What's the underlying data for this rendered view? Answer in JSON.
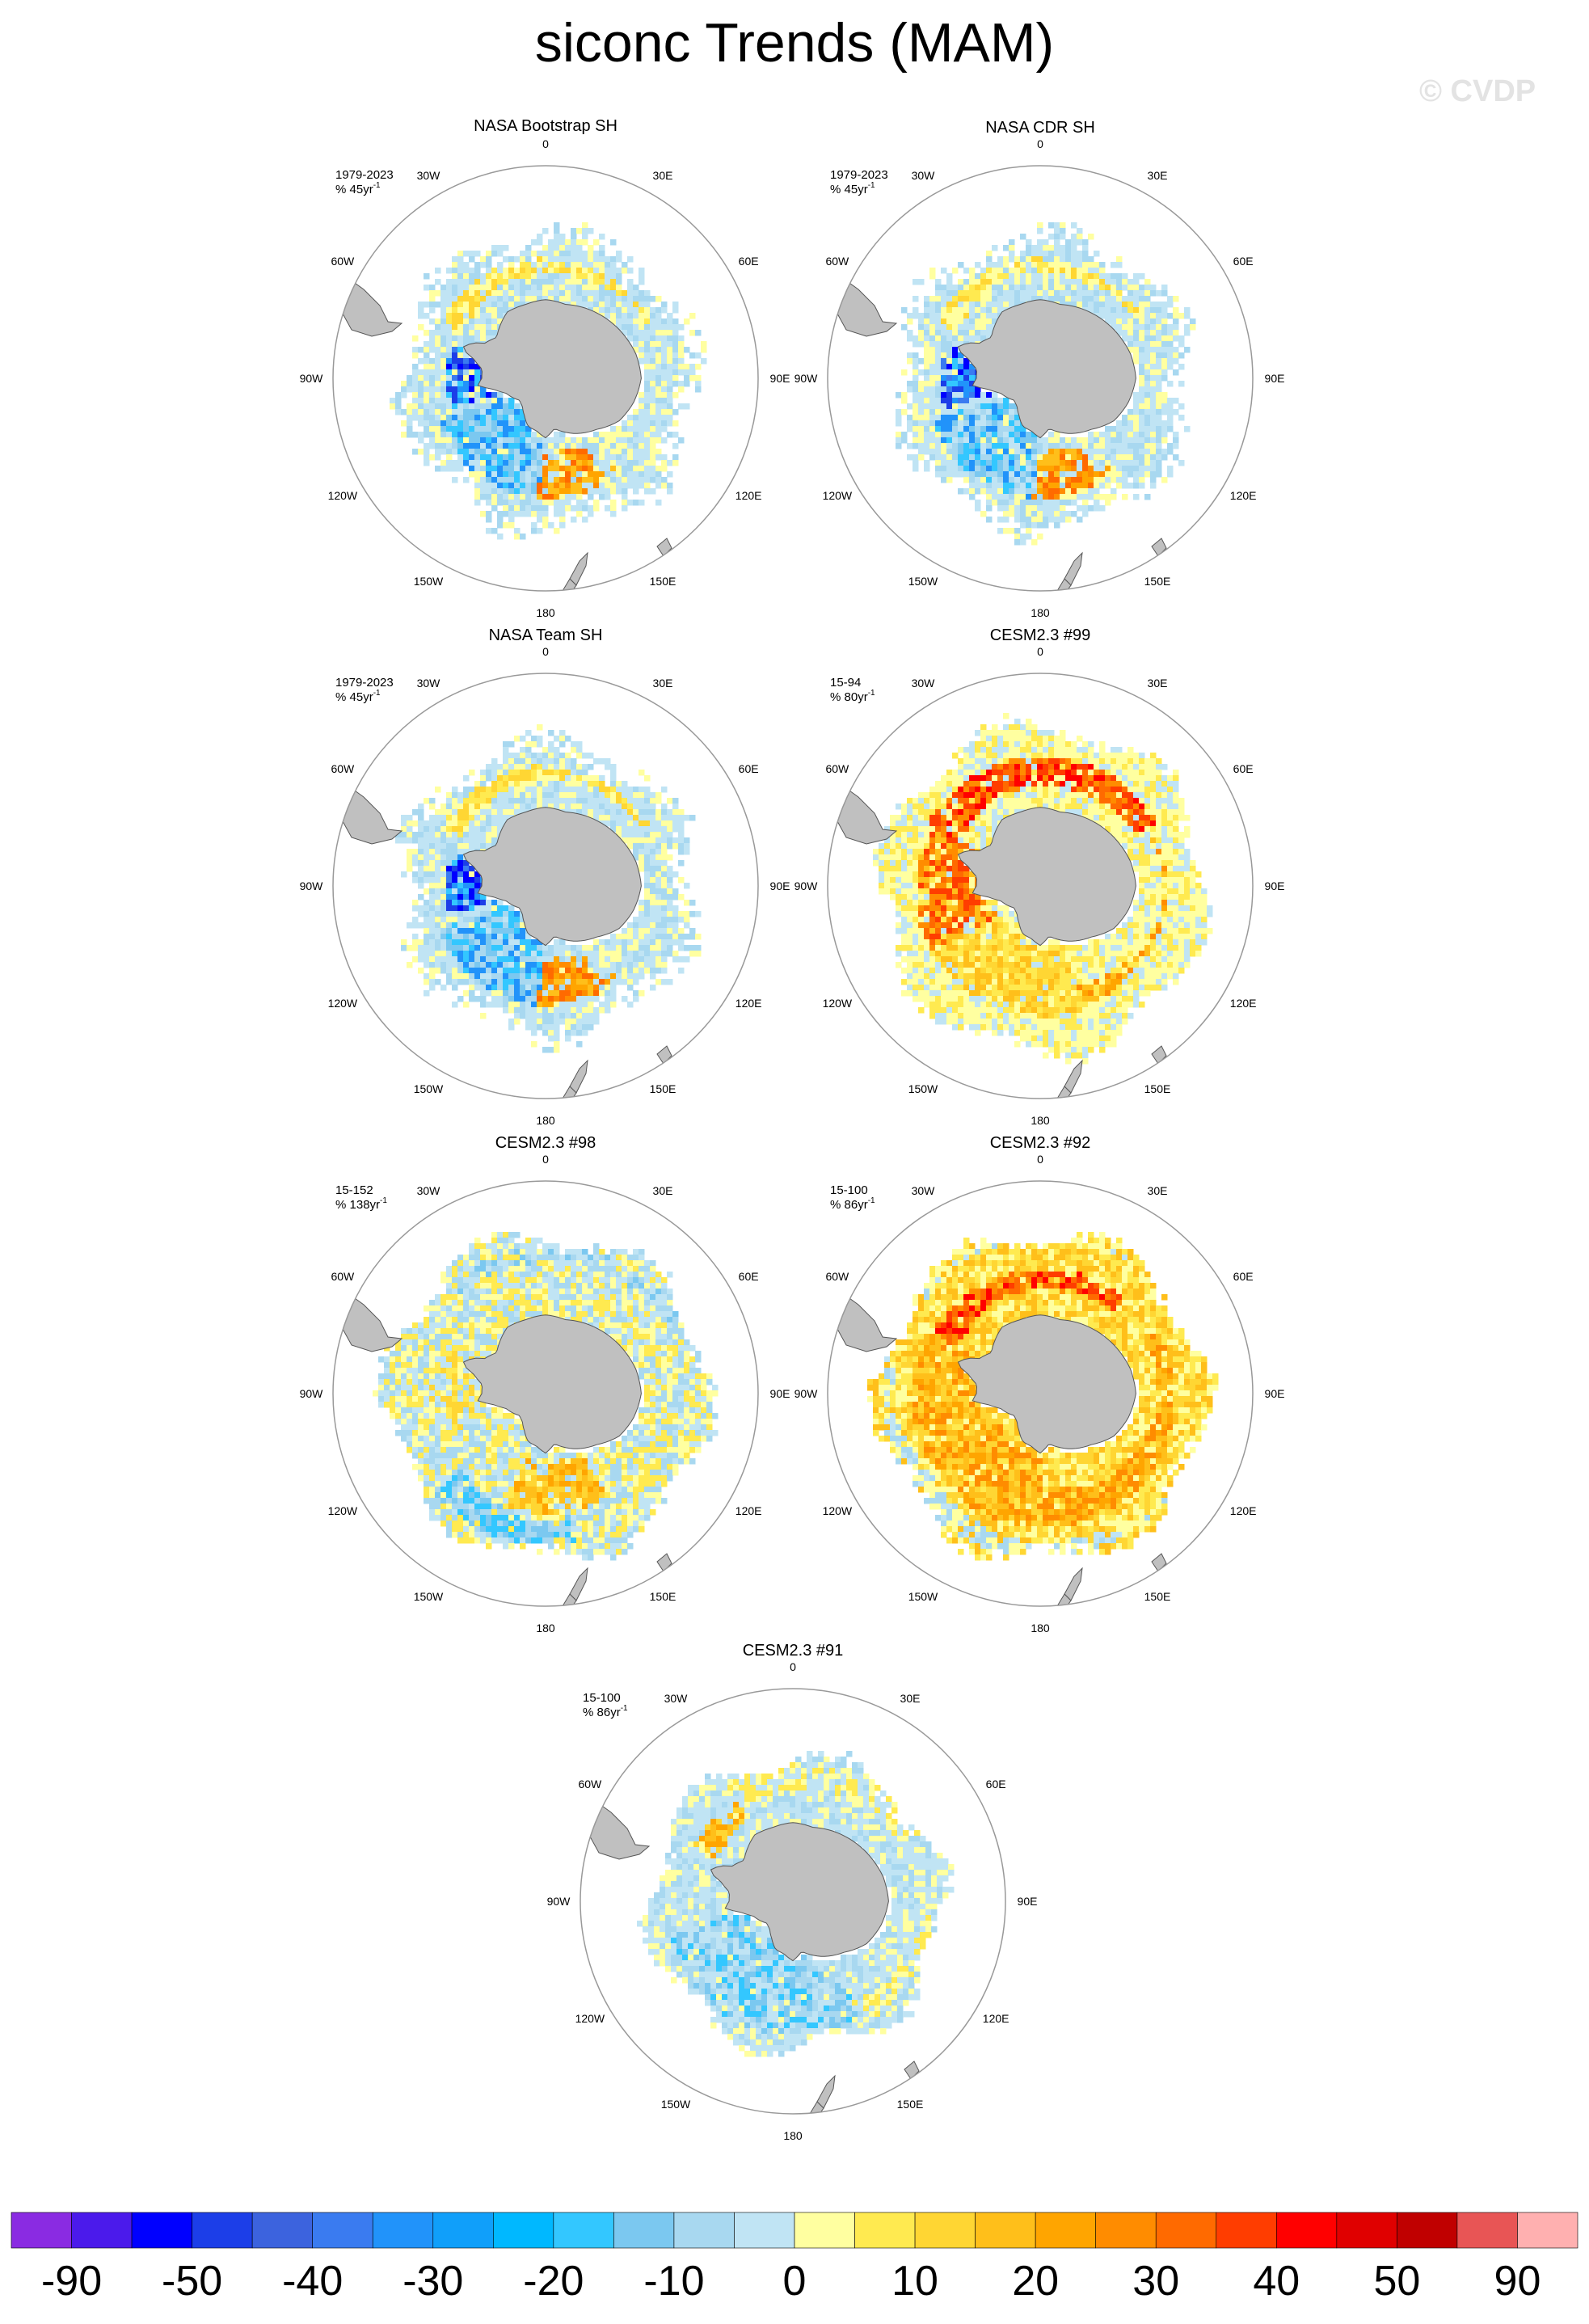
{
  "title": "siconc Trends (MAM)",
  "watermark": "© CVDP",
  "land_color": "#c0c0c0",
  "colors": {
    "map_border": "#999999",
    "coast": "#555555"
  },
  "lon_labels": [
    "0",
    "30E",
    "60E",
    "90E",
    "120E",
    "150E",
    "180",
    "150W",
    "120W",
    "90W",
    "60W",
    "30W"
  ],
  "panels": [
    {
      "title": "NASA Bootstrap SH",
      "period": "1979-2023",
      "units": "% 45yr",
      "units_sup": "-1",
      "pattern": "obs",
      "variant": 0
    },
    {
      "title": "NASA CDR SH",
      "period": "1979-2023",
      "units": "% 45yr",
      "units_sup": "-1",
      "pattern": "obs",
      "variant": 1
    },
    {
      "title": "NASA Team SH",
      "period": "1979-2023",
      "units": "% 45yr",
      "units_sup": "-1",
      "pattern": "obs",
      "variant": 2
    },
    {
      "title": "CESM2.3 #99",
      "period": "15-94",
      "units": "% 80yr",
      "units_sup": "-1",
      "pattern": "warm_strong",
      "variant": 0
    },
    {
      "title": "CESM2.3 #98",
      "period": "15-152",
      "units": "% 138yr",
      "units_sup": "-1",
      "pattern": "mixed",
      "variant": 0
    },
    {
      "title": "CESM2.3 #92",
      "period": "15-100",
      "units": "% 86yr",
      "units_sup": "-1",
      "pattern": "warm",
      "variant": 1
    },
    {
      "title": "CESM2.3 #91",
      "period": "15-100",
      "units": "% 86yr",
      "units_sup": "-1",
      "pattern": "cool",
      "variant": 0
    }
  ],
  "colorbar": {
    "colors": [
      "#8a2be2",
      "#4b1aeb",
      "#0000ff",
      "#1c3ee8",
      "#3c63de",
      "#3a7bf0",
      "#2193fa",
      "#109ffa",
      "#00b8ff",
      "#33c7ff",
      "#7bc8f0",
      "#a8d8f0",
      "#c0e4f4",
      "#ffffa0",
      "#ffea50",
      "#ffd633",
      "#ffbf1a",
      "#ffa500",
      "#ff8c00",
      "#ff6a00",
      "#ff3d00",
      "#ff0000",
      "#e00000",
      "#c00000",
      "#e85555",
      "#ffb0b0"
    ],
    "labels": [
      "-90",
      "-50",
      "-40",
      "-30",
      "-20",
      "-10",
      "0",
      "10",
      "20",
      "30",
      "40",
      "50",
      "90"
    ]
  }
}
